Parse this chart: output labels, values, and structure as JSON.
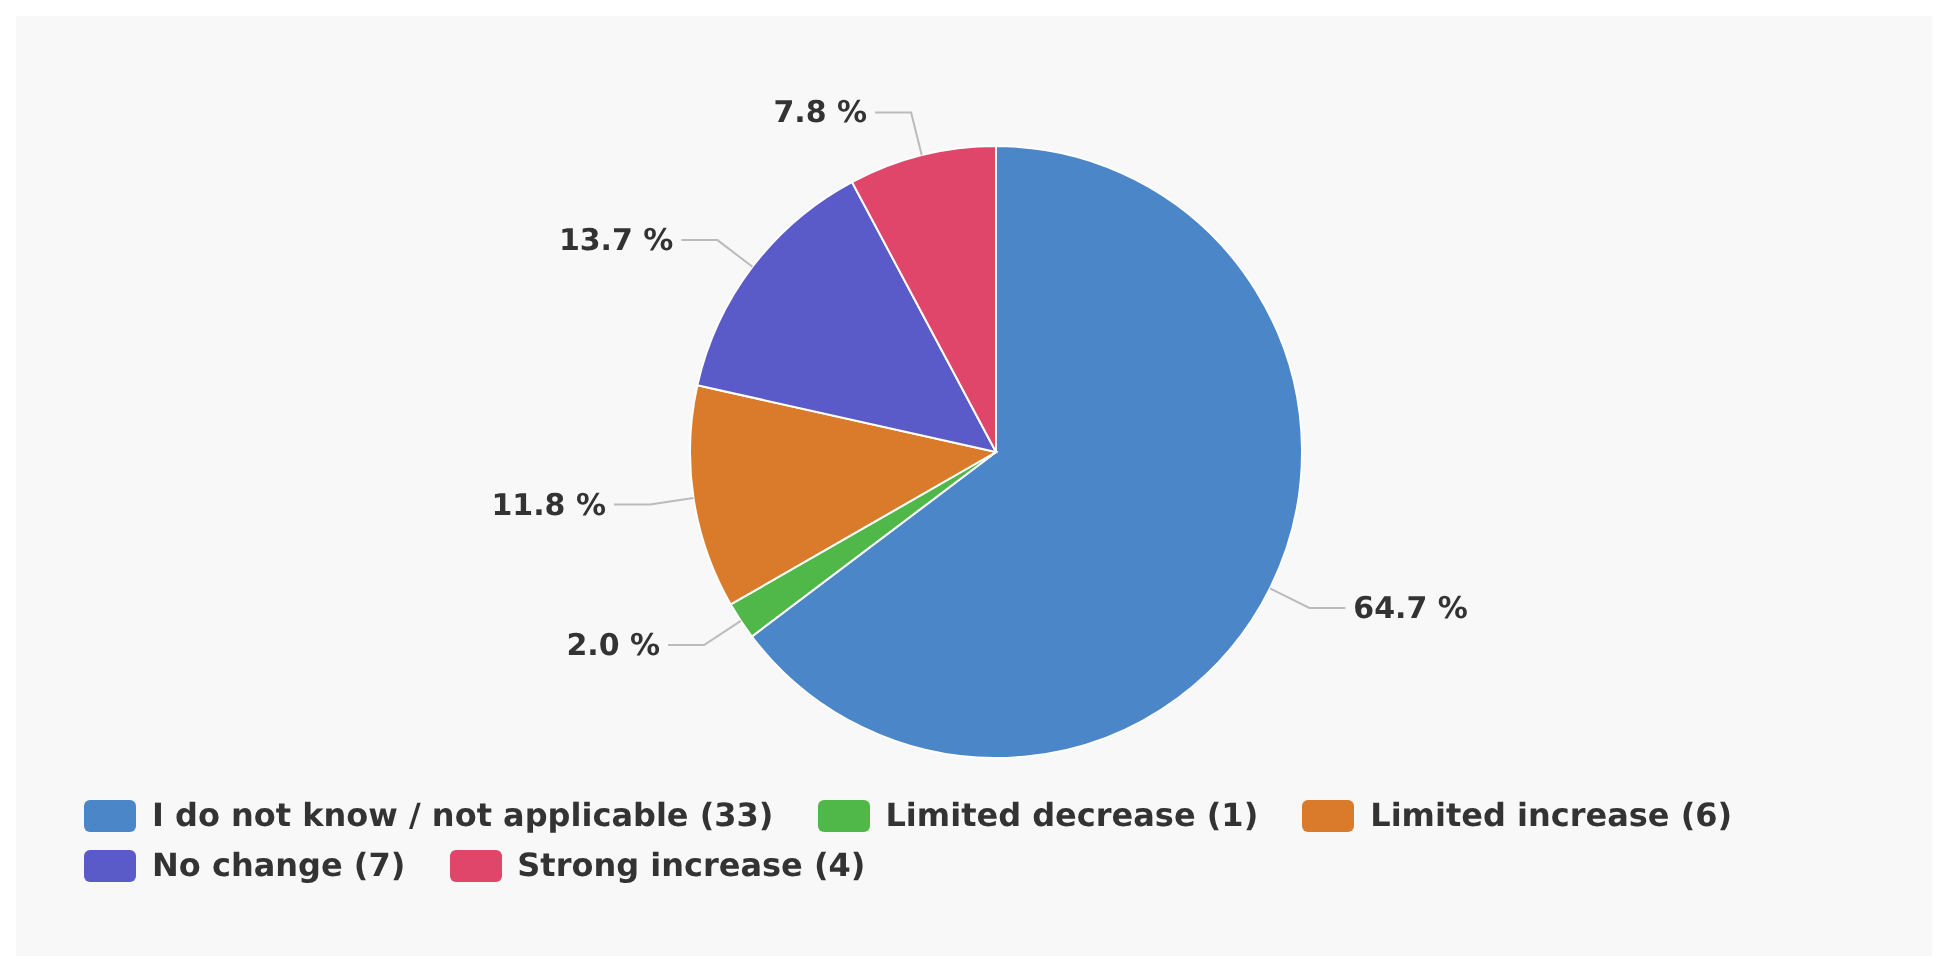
{
  "chart_data": {
    "type": "pie",
    "categories": [
      "I do not know / not applicable (33)",
      "Limited decrease (1)",
      "Limited increase (6)",
      "No change (7)",
      "Strong increase (4)"
    ],
    "values": [
      64.7,
      2.0,
      11.8,
      13.7,
      7.8
    ],
    "value_labels": [
      "64.7 %",
      "2.0 %",
      "11.8 %",
      "13.7 %",
      "7.8 %"
    ],
    "colors": [
      "#4a86c8",
      "#50b848",
      "#d97b2b",
      "#5a5ac8",
      "#e0466a"
    ],
    "legend": "bottom"
  }
}
